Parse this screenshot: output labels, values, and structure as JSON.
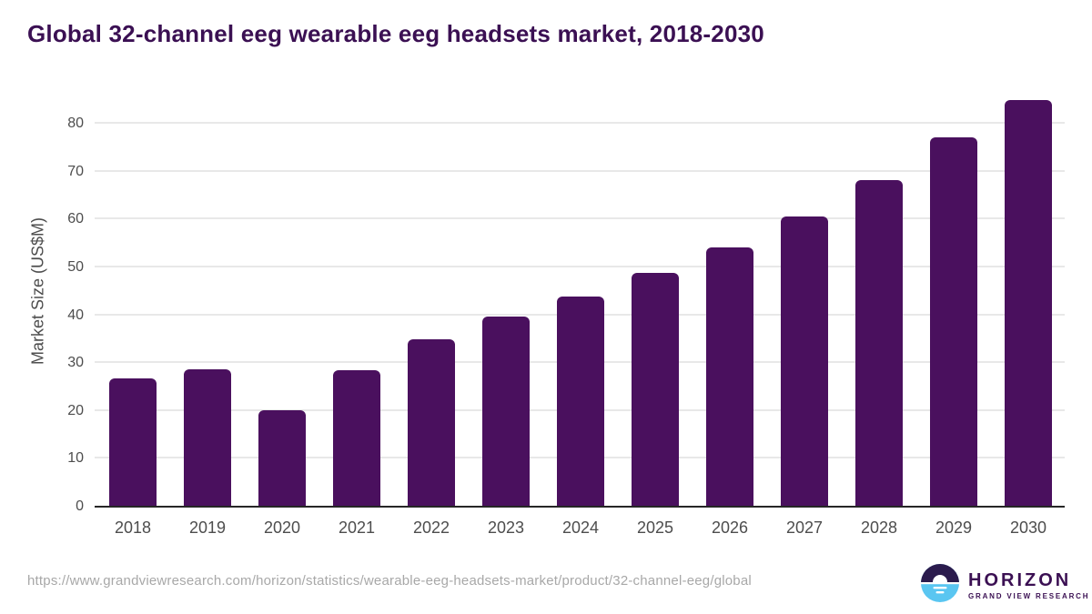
{
  "header": {
    "title": "Global 32-channel eeg wearable eeg headsets market, 2018-2030"
  },
  "footer": {
    "source_url": "https://www.grandviewresearch.com/horizon/statistics/wearable-eeg-headsets-market/product/32-channel-eeg/global",
    "logo": {
      "brand": "HORIZON",
      "subtitle": "GRAND VIEW RESEARCH"
    }
  },
  "colors": {
    "bar": "#4a105e",
    "title_text": "#3b1053",
    "axis_text": "#4d4d4d",
    "gridline": "#e8e8e8",
    "axis_line": "#262626",
    "url_text": "#a8a8a8",
    "logo_purple": "#2b1b4d",
    "logo_blue": "#5ac6f1"
  },
  "chart_data": {
    "type": "bar",
    "title": "Global 32-channel eeg wearable eeg headsets market, 2018-2030",
    "categories": [
      "2018",
      "2019",
      "2020",
      "2021",
      "2022",
      "2023",
      "2024",
      "2025",
      "2026",
      "2027",
      "2028",
      "2029",
      "2030"
    ],
    "values": [
      26.8,
      28.8,
      20.1,
      28.6,
      34.9,
      39.8,
      44.0,
      48.8,
      54.2,
      60.7,
      68.3,
      77.1,
      84.9
    ],
    "xlabel": "",
    "ylabel": "Market Size (US$M)",
    "ylim": [
      0,
      87
    ],
    "yticks": [
      0,
      10,
      20,
      30,
      40,
      50,
      60,
      70,
      80
    ],
    "grid": true,
    "legend": false,
    "bar_color": "#4a105e"
  }
}
